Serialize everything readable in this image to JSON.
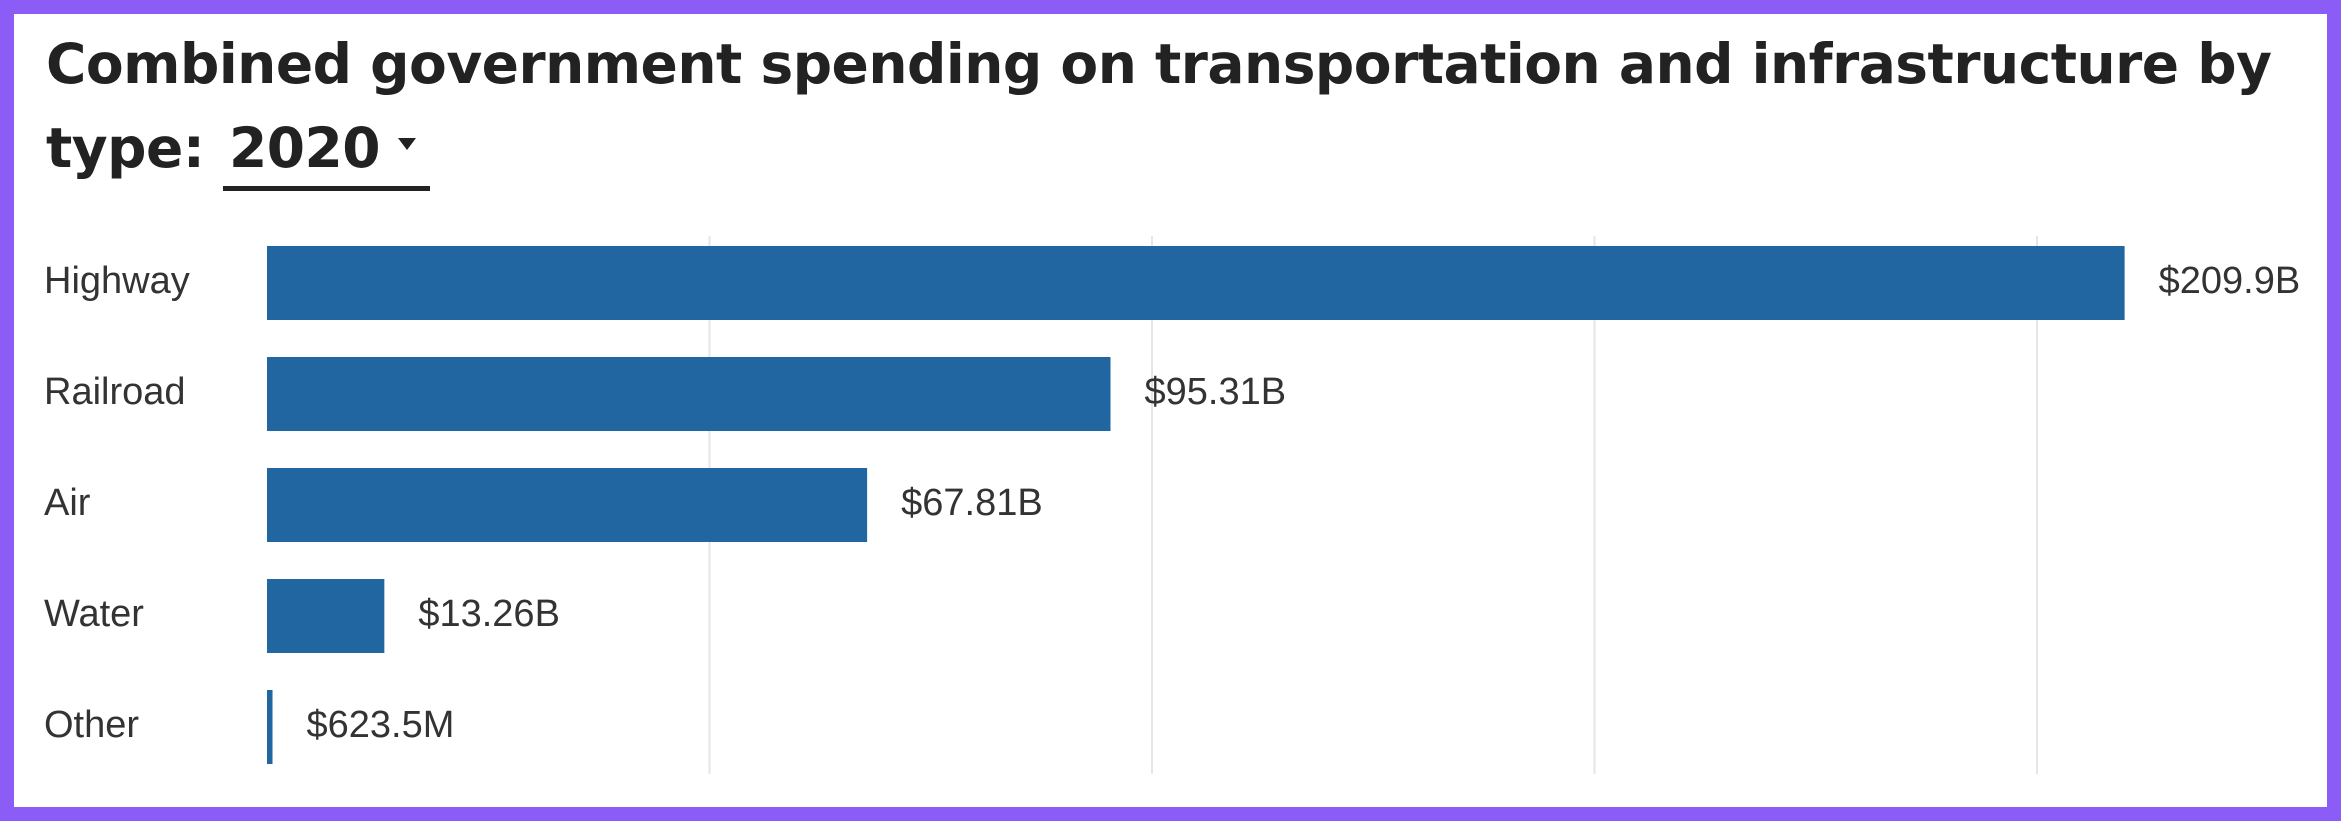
{
  "title": {
    "prefix": "Combined government spending on transportation and infrastructure by type:",
    "year": "2020"
  },
  "colors": {
    "bar": "#2166A0",
    "grid": "#E6E6E6",
    "frame": "#8B5CF6"
  },
  "chart_data": {
    "type": "bar",
    "orientation": "horizontal",
    "title": "Combined government spending on transportation and infrastructure by type: 2020",
    "categories": [
      "Highway",
      "Railroad",
      "Air",
      "Water",
      "Other"
    ],
    "values": [
      209.9,
      95.31,
      67.81,
      13.26,
      0.6235
    ],
    "value_unit": "billion USD",
    "value_labels": [
      "$209.9B",
      "$95.31B",
      "$67.81B",
      "$13.26B",
      "$623.5M"
    ],
    "xlim": [
      0,
      200
    ],
    "grid": true,
    "legend": "none"
  }
}
